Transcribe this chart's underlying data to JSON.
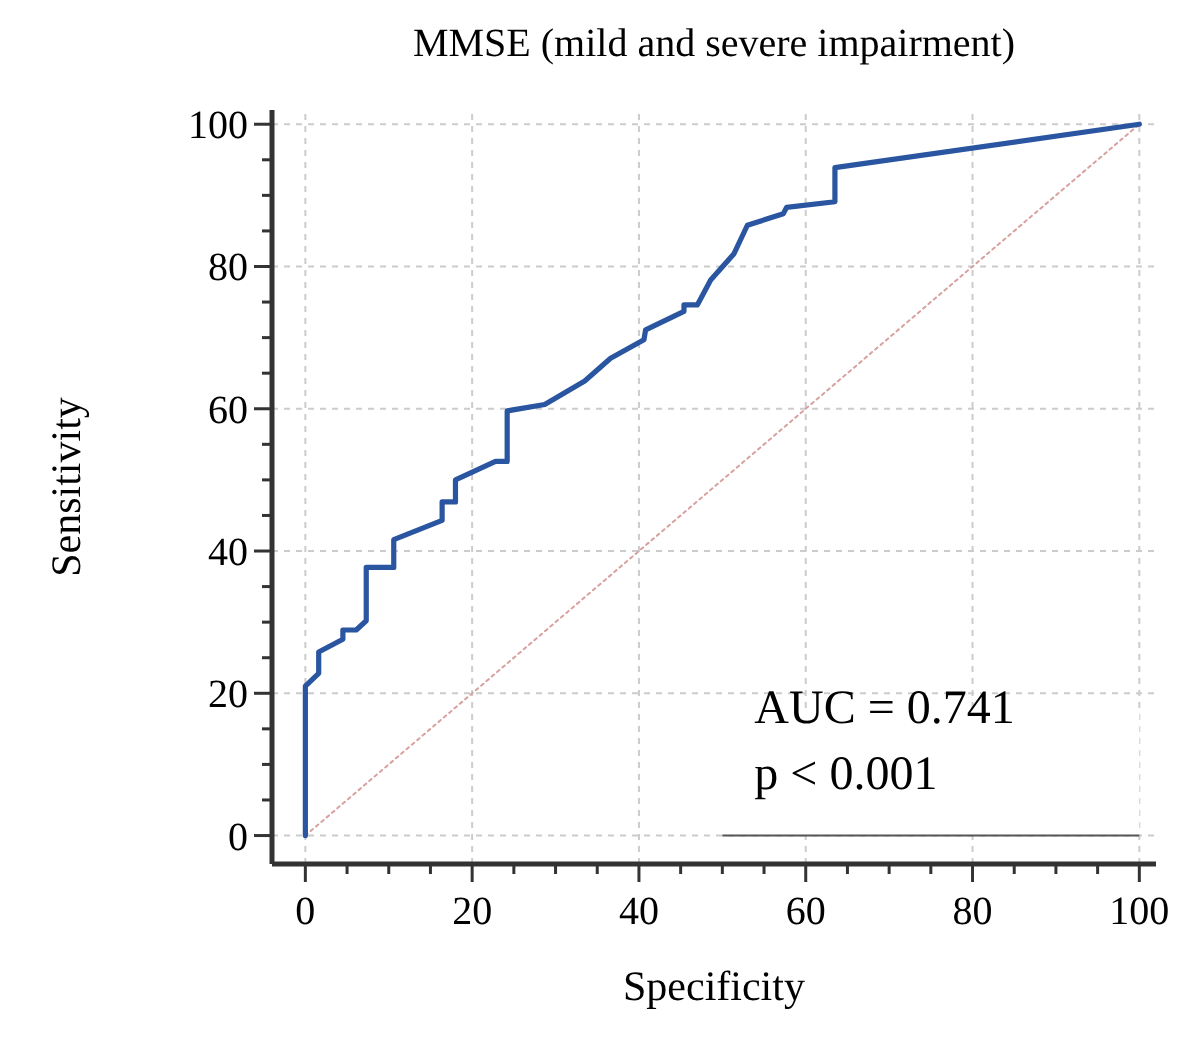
{
  "chart_data": {
    "type": "line",
    "title": "MMSE (mild and severe impairment)",
    "xlabel": "Specificity",
    "ylabel": "Sensitivity",
    "xlim": [
      -4,
      102
    ],
    "ylim": [
      -4,
      102
    ],
    "xticks": [
      0,
      {
        "value": 5,
        "label": null
      },
      {
        "value": 10,
        "label": null
      },
      {
        "value": 15,
        "label": null
      },
      20,
      {
        "value": 25,
        "label": null
      },
      {
        "value": 30,
        "label": null
      },
      {
        "value": 35,
        "label": null
      },
      40,
      {
        "value": 45,
        "label": null
      },
      {
        "value": 50,
        "label": null
      },
      {
        "value": 55,
        "label": null
      },
      60,
      {
        "value": 65,
        "label": null
      },
      {
        "value": 70,
        "label": null
      },
      {
        "value": 75,
        "label": null
      },
      80,
      {
        "value": 85,
        "label": null
      },
      {
        "value": 90,
        "label": null
      },
      {
        "value": 95,
        "label": null
      },
      100
    ],
    "yticks": [
      0,
      {
        "value": 5,
        "label": null
      },
      {
        "value": 10,
        "label": null
      },
      {
        "value": 15,
        "label": null
      },
      20,
      {
        "value": 25,
        "label": null
      },
      {
        "value": 30,
        "label": null
      },
      {
        "value": 35,
        "label": null
      },
      40,
      {
        "value": 45,
        "label": null
      },
      {
        "value": 50,
        "label": null
      },
      {
        "value": 55,
        "label": null
      },
      60,
      {
        "value": 65,
        "label": null
      },
      {
        "value": 70,
        "label": null
      },
      {
        "value": 75,
        "label": null
      },
      80,
      {
        "value": 85,
        "label": null
      },
      {
        "value": 90,
        "label": null
      },
      {
        "value": 95,
        "label": null
      },
      100
    ],
    "grid": true,
    "series": [
      {
        "color": "#2a55a0",
        "line_style": "solid",
        "x": [
          0,
          0,
          1.6,
          1.6,
          4.5,
          4.5,
          6.1,
          7.3,
          7.3,
          10.6,
          10.6,
          16.4,
          16.4,
          18,
          18,
          22.8,
          24.2,
          24.2,
          28.7,
          33.5,
          36.6,
          40.6,
          40.8,
          45.4,
          45.4,
          47,
          48.6,
          51.4,
          53,
          57.3,
          57.7,
          63.5,
          63.5,
          100
        ],
        "values": [
          0,
          21,
          22.8,
          25.8,
          27.6,
          28.9,
          28.9,
          30.2,
          37.7,
          37.7,
          41.6,
          44.3,
          46.9,
          46.9,
          50,
          52.6,
          52.6,
          59.7,
          60.6,
          63.9,
          67.1,
          69.7,
          71.1,
          73.7,
          74.6,
          74.6,
          78.1,
          81.8,
          85.8,
          87.4,
          88.3,
          89.1,
          93.9,
          100
        ]
      },
      {
        "type": "line",
        "color": "#d9a0a0",
        "line_style": "dotted",
        "x": [
          0,
          100
        ],
        "values": [
          0,
          100
        ]
      }
    ],
    "annotations": [
      "AUC = 0.741",
      "p < 0.001"
    ]
  }
}
